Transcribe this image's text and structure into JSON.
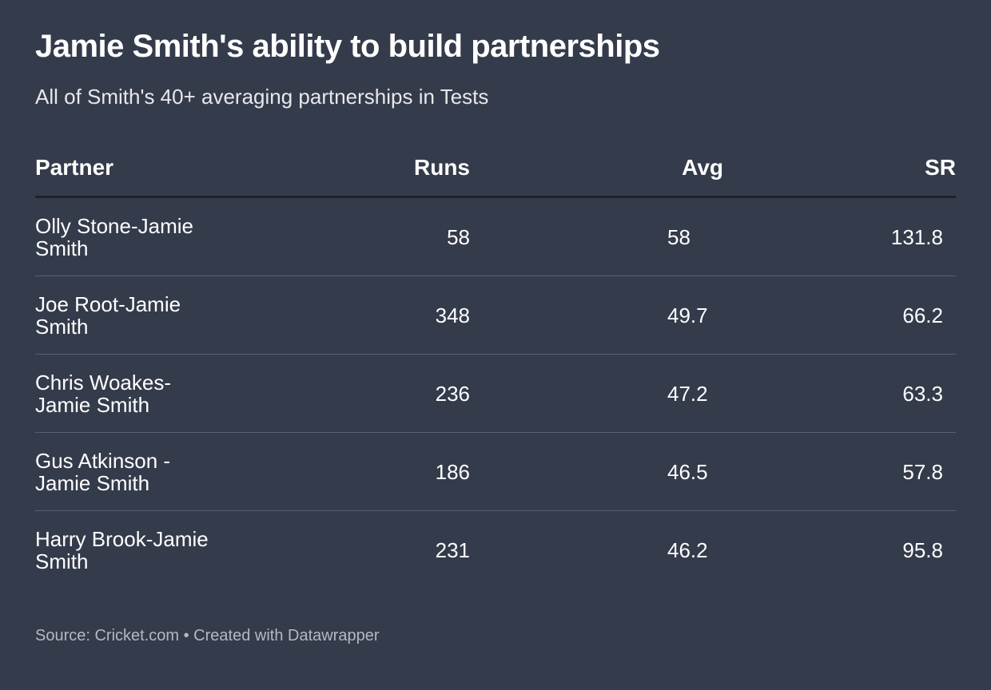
{
  "header": {
    "title": "Jamie Smith's ability to build partnerships",
    "subtitle": "All of Smith's 40+ averaging partnerships in Tests"
  },
  "table": {
    "columns": [
      "Partner",
      "Runs",
      "Avg",
      "SR"
    ],
    "rows": [
      [
        "Olly Stone-Jamie Smith",
        58,
        58,
        131.8
      ],
      [
        "Joe Root-Jamie Smith",
        348,
        49.7,
        66.2
      ],
      [
        "Chris Woakes-Jamie Smith",
        236,
        47.2,
        63.3
      ],
      [
        "Gus Atkinson - Jamie Smith",
        186,
        46.5,
        57.8
      ],
      [
        "Harry Brook-Jamie Smith",
        231,
        46.2,
        95.8
      ]
    ]
  },
  "footer": {
    "source": "Source: Cricket.com • Created with Datawrapper"
  }
}
